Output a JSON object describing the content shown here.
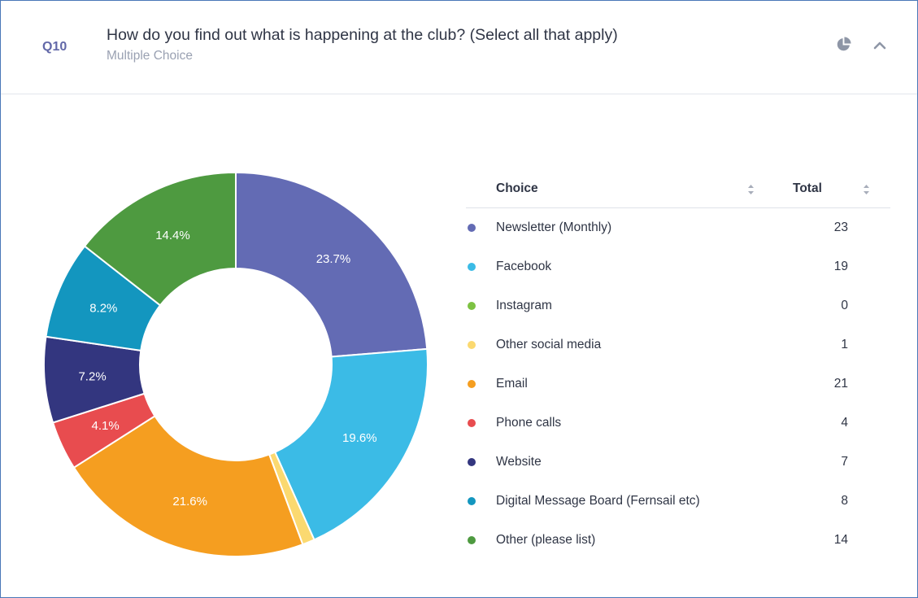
{
  "question": {
    "number": "Q10",
    "title": "How do you find out what is happening at the club? (Select all that apply)",
    "type": "Multiple Choice"
  },
  "icons": {
    "chart_toggle": "pie-chart-icon",
    "collapse": "chevron-up-icon",
    "sort": "sort-icon"
  },
  "table": {
    "col_choice": "Choice",
    "col_total": "Total"
  },
  "chart_data": {
    "type": "pie",
    "variant": "donut",
    "start_angle_deg": 0,
    "direction": "clockwise",
    "categories": [
      "Newsletter (Monthly)",
      "Facebook",
      "Instagram",
      "Other social media",
      "Email",
      "Phone calls",
      "Website",
      "Digital Message Board (Fernsail etc)",
      "Other (please list)"
    ],
    "values": [
      23,
      19,
      0,
      1,
      21,
      4,
      7,
      8,
      14
    ],
    "percent_labels": [
      "23.7%",
      "19.6%",
      "",
      "",
      "21.6%",
      "4.1%",
      "7.2%",
      "8.2%",
      "14.4%"
    ],
    "colors": [
      "#636bb4",
      "#3bbbe6",
      "#7dc242",
      "#fbd970",
      "#f59e20",
      "#e84c4f",
      "#33367f",
      "#1396bf",
      "#4e9a40"
    ],
    "legend_position": "right"
  }
}
